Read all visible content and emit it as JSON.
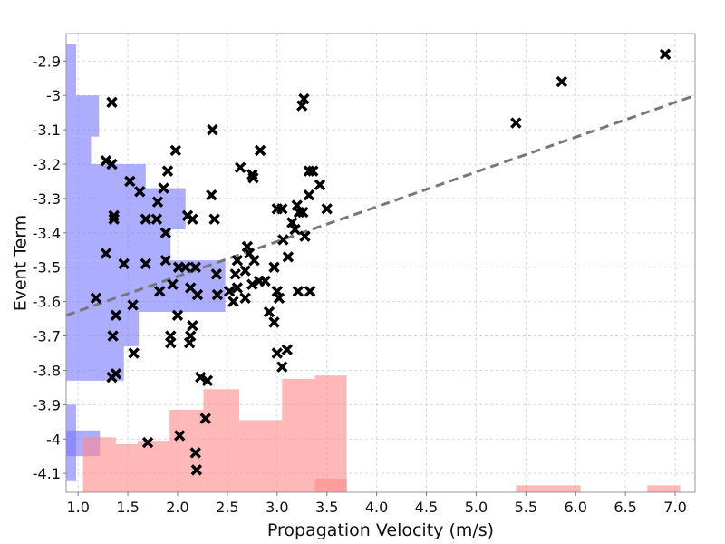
{
  "chart_data": {
    "type": "scatter",
    "title": "",
    "xlabel": "Propagation Velocity (m/s)",
    "ylabel": "Event Term",
    "xlim": [
      0.88,
      7.2
    ],
    "ylim": [
      -4.155,
      -2.82
    ],
    "x_ticks": [
      "1.0",
      "1.5",
      "2.0",
      "2.5",
      "3.0",
      "3.5",
      "4.0",
      "4.5",
      "5.0",
      "5.5",
      "6.0",
      "6.5",
      "7.0"
    ],
    "x_tick_values": [
      1.0,
      1.5,
      2.0,
      2.5,
      3.0,
      3.5,
      4.0,
      4.5,
      5.0,
      5.5,
      6.0,
      6.5,
      7.0
    ],
    "y_ticks": [
      "-2.9",
      "-3",
      "-3.1",
      "-3.2",
      "-3.3",
      "-3.4",
      "-3.5",
      "-3.6",
      "-3.7",
      "-3.8",
      "-3.9",
      "-4",
      "-4.1"
    ],
    "y_tick_values": [
      -2.9,
      -3.0,
      -3.1,
      -3.2,
      -3.3,
      -3.4,
      -3.5,
      -3.6,
      -3.7,
      -3.8,
      -3.9,
      -4.0,
      -4.1
    ],
    "grid": true,
    "legend": "none",
    "marker": "x",
    "points": [
      [
        1.34,
        -3.02
      ],
      [
        1.98,
        -3.16
      ],
      [
        2.35,
        -3.1
      ],
      [
        3.27,
        -3.01
      ],
      [
        3.25,
        -3.03
      ],
      [
        2.83,
        -3.16
      ],
      [
        1.28,
        -3.19
      ],
      [
        1.34,
        -3.2
      ],
      [
        1.9,
        -3.22
      ],
      [
        2.63,
        -3.21
      ],
      [
        2.75,
        -3.23
      ],
      [
        2.76,
        -3.24
      ],
      [
        3.32,
        -3.22
      ],
      [
        3.36,
        -3.22
      ],
      [
        3.43,
        -3.26
      ],
      [
        1.52,
        -3.25
      ],
      [
        1.62,
        -3.28
      ],
      [
        1.86,
        -3.27
      ],
      [
        2.34,
        -3.29
      ],
      [
        3.32,
        -3.29
      ],
      [
        3.2,
        -3.32
      ],
      [
        1.8,
        -3.31
      ],
      [
        3.0,
        -3.33
      ],
      [
        3.05,
        -3.33
      ],
      [
        3.22,
        -3.34
      ],
      [
        3.26,
        -3.34
      ],
      [
        3.5,
        -3.33
      ],
      [
        1.36,
        -3.35
      ],
      [
        1.36,
        -3.36
      ],
      [
        1.68,
        -3.36
      ],
      [
        1.79,
        -3.36
      ],
      [
        2.1,
        -3.35
      ],
      [
        2.15,
        -3.36
      ],
      [
        2.37,
        -3.36
      ],
      [
        3.15,
        -3.37
      ],
      [
        3.18,
        -3.39
      ],
      [
        1.88,
        -3.4
      ],
      [
        2.7,
        -3.44
      ],
      [
        3.06,
        -3.42
      ],
      [
        3.28,
        -3.41
      ],
      [
        1.28,
        -3.46
      ],
      [
        2.72,
        -3.46
      ],
      [
        2.77,
        -3.48
      ],
      [
        2.6,
        -3.48
      ],
      [
        3.11,
        -3.47
      ],
      [
        1.46,
        -3.49
      ],
      [
        1.68,
        -3.49
      ],
      [
        1.88,
        -3.48
      ],
      [
        2.01,
        -3.5
      ],
      [
        2.08,
        -3.5
      ],
      [
        2.18,
        -3.5
      ],
      [
        2.39,
        -3.52
      ],
      [
        2.58,
        -3.52
      ],
      [
        2.68,
        -3.51
      ],
      [
        2.97,
        -3.5
      ],
      [
        1.82,
        -3.57
      ],
      [
        1.95,
        -3.55
      ],
      [
        2.13,
        -3.56
      ],
      [
        2.2,
        -3.58
      ],
      [
        2.4,
        -3.58
      ],
      [
        2.52,
        -3.57
      ],
      [
        2.6,
        -3.56
      ],
      [
        2.75,
        -3.55
      ],
      [
        2.82,
        -3.54
      ],
      [
        2.88,
        -3.54
      ],
      [
        3.0,
        -3.57
      ],
      [
        3.02,
        -3.59
      ],
      [
        3.21,
        -3.57
      ],
      [
        3.33,
        -3.57
      ],
      [
        1.18,
        -3.59
      ],
      [
        1.55,
        -3.61
      ],
      [
        2.56,
        -3.6
      ],
      [
        2.68,
        -3.59
      ],
      [
        1.38,
        -3.64
      ],
      [
        2.0,
        -3.64
      ],
      [
        2.92,
        -3.63
      ],
      [
        2.15,
        -3.67
      ],
      [
        2.97,
        -3.66
      ],
      [
        1.35,
        -3.7
      ],
      [
        1.93,
        -3.7
      ],
      [
        1.93,
        -3.72
      ],
      [
        2.13,
        -3.7
      ],
      [
        2.12,
        -3.72
      ],
      [
        1.56,
        -3.75
      ],
      [
        3.0,
        -3.75
      ],
      [
        3.1,
        -3.74
      ],
      [
        1.38,
        -3.81
      ],
      [
        1.34,
        -3.82
      ],
      [
        2.23,
        -3.82
      ],
      [
        2.3,
        -3.83
      ],
      [
        3.05,
        -3.79
      ],
      [
        2.28,
        -3.94
      ],
      [
        2.02,
        -3.99
      ],
      [
        1.7,
        -4.01
      ],
      [
        2.18,
        -4.04
      ],
      [
        2.19,
        -4.09
      ],
      [
        5.4,
        -3.08
      ],
      [
        5.86,
        -2.96
      ],
      [
        6.9,
        -2.88
      ]
    ],
    "trend_line": {
      "style": "dashed",
      "x": [
        0.88,
        7.2
      ],
      "y": [
        -3.64,
        -3.0
      ]
    },
    "histograms": [
      {
        "name": "",
        "orientation": "horizontal",
        "color": "#7777ff",
        "bins": [
          {
            "y_low": -2.85,
            "y_high": -2.94,
            "value": 0.1
          },
          {
            "y_low": -2.94,
            "y_high": -3.0,
            "value": 0.1
          },
          {
            "y_low": -3.0,
            "y_high": -3.12,
            "value": 0.33
          },
          {
            "y_low": -3.12,
            "y_high": -3.2,
            "value": 0.25
          },
          {
            "y_low": -3.2,
            "y_high": -3.27,
            "value": 0.8
          },
          {
            "y_low": -3.27,
            "y_high": -3.39,
            "value": 1.2
          },
          {
            "y_low": -3.39,
            "y_high": -3.48,
            "value": 1.05
          },
          {
            "y_low": -3.48,
            "y_high": -3.63,
            "value": 1.6
          },
          {
            "y_low": -3.63,
            "y_high": -3.73,
            "value": 0.73
          },
          {
            "y_low": -3.73,
            "y_high": -3.83,
            "value": 0.58
          },
          {
            "y_low": -3.9,
            "y_high": -4.12,
            "value": 0.1
          },
          {
            "y_low": -3.975,
            "y_high": -4.05,
            "value": 0.34
          }
        ]
      },
      {
        "name": "",
        "orientation": "vertical",
        "color": "#ff8888",
        "bins": [
          {
            "x_low": 1.05,
            "x_high": 1.38,
            "value": 0.16
          },
          {
            "x_low": 1.38,
            "x_high": 1.6,
            "value": 0.14
          },
          {
            "x_low": 1.6,
            "x_high": 1.92,
            "value": 0.15
          },
          {
            "x_low": 1.92,
            "x_high": 2.26,
            "value": 0.24
          },
          {
            "x_low": 2.26,
            "x_high": 2.62,
            "value": 0.3
          },
          {
            "x_low": 2.62,
            "x_high": 3.05,
            "value": 0.21
          },
          {
            "x_low": 3.05,
            "x_high": 3.38,
            "value": 0.33
          },
          {
            "x_low": 3.38,
            "x_high": 3.7,
            "value": 0.34
          },
          {
            "x_low": 3.38,
            "x_high": 3.7,
            "value": 0.04
          },
          {
            "x_low": 5.4,
            "x_high": 6.05,
            "value": 0.02
          },
          {
            "x_low": 6.72,
            "x_high": 7.05,
            "value": 0.02
          }
        ]
      }
    ]
  }
}
